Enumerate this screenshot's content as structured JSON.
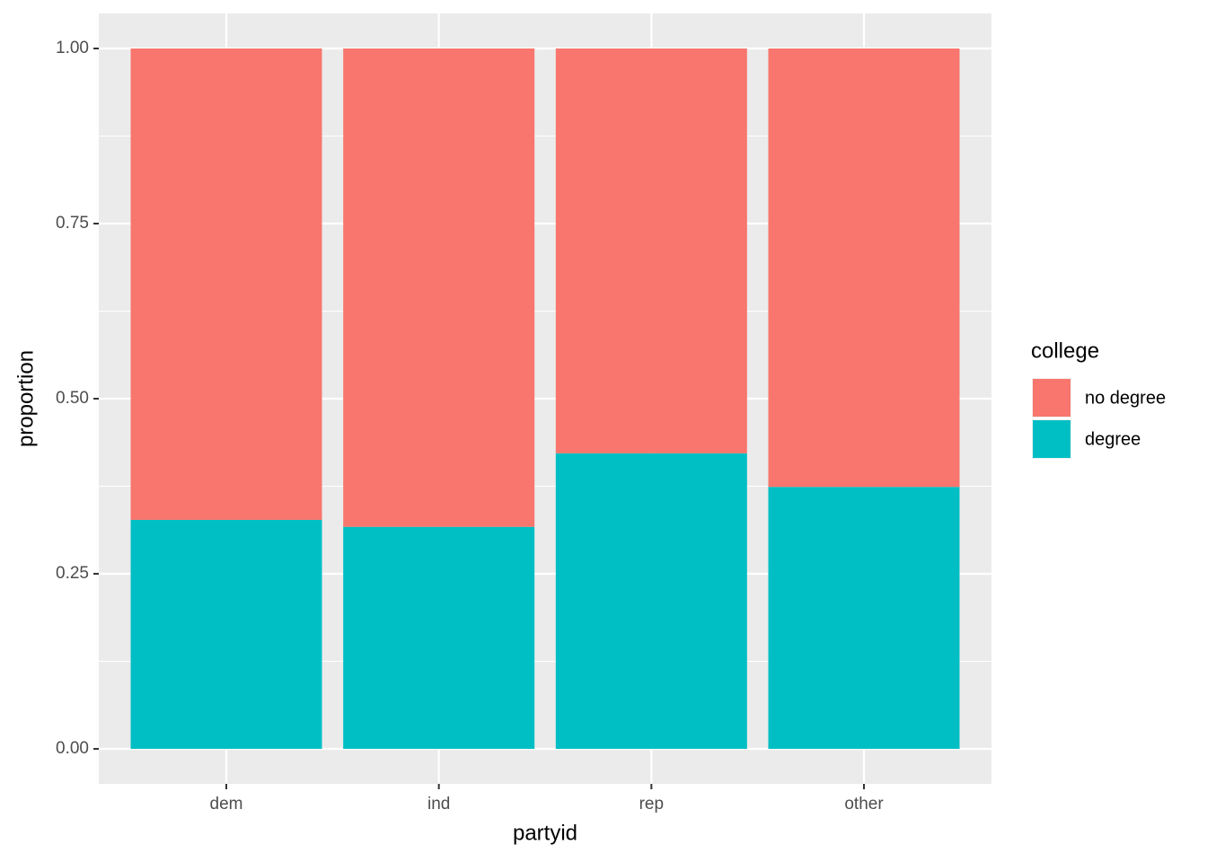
{
  "chart_data": {
    "type": "stacked_bar",
    "x_label": "partyid",
    "y_label": "proportion",
    "categories": [
      "dem",
      "ind",
      "rep",
      "other"
    ],
    "series": [
      {
        "name": "no degree",
        "color": "#F8766D",
        "values": [
          0.673,
          0.683,
          0.578,
          0.626
        ]
      },
      {
        "name": "degree",
        "color": "#00BFC4",
        "values": [
          0.327,
          0.317,
          0.422,
          0.374
        ]
      }
    ],
    "legend_title": "college",
    "ylim": [
      -0.05,
      1.05
    ],
    "yticks": [
      {
        "value": 0,
        "label": "0.00"
      },
      {
        "value": 0.25,
        "label": "0.25"
      },
      {
        "value": 0.5,
        "label": "0.50"
      },
      {
        "value": 0.75,
        "label": "0.75"
      },
      {
        "value": 1,
        "label": "1.00"
      }
    ],
    "grid": true,
    "legend_position": "right"
  }
}
